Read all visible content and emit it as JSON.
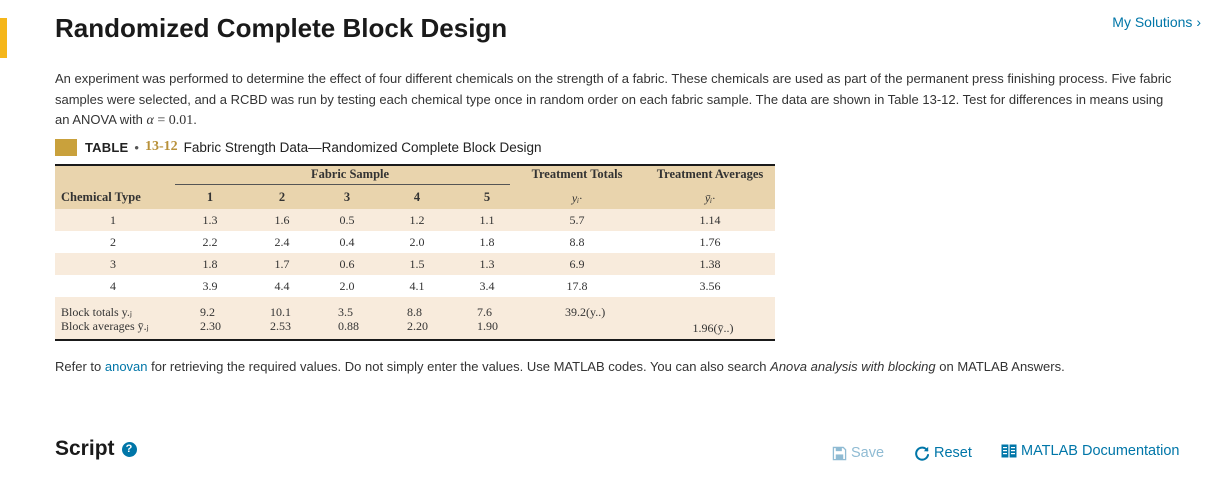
{
  "header": {
    "title": "Randomized Complete Block Design",
    "my_solutions_label": "My Solutions",
    "my_solutions_chevron": "›"
  },
  "description": {
    "text": "An experiment was performed to determine the effect of four different chemicals on the strength of a fabric. These chemicals are used as part of the permanent press finishing process. Five fabric samples were selected, and a RCBD was run by testing each chemical type once in random order on each fabric sample. The data are shown in Table 13-12. Test for differences in means using an ANOVA with ",
    "alpha_symbol": "α",
    "alpha_value": " = 0.01",
    "end": "."
  },
  "table": {
    "caption_label": "TABLE",
    "caption_dot": "•",
    "caption_number": "13-12",
    "caption_title": "Fabric Strength Data—Randomized Complete Block Design",
    "header": {
      "fabric_sample": "Fabric Sample",
      "treatment_totals": "Treatment Totals",
      "treatment_averages": "Treatment Averages",
      "chemical_type": "Chemical Type",
      "samples": [
        "1",
        "2",
        "3",
        "4",
        "5"
      ],
      "totals_symbol": "yᵢ·",
      "averages_symbol": "ȳᵢ·"
    },
    "rows": [
      {
        "type": "1",
        "values": [
          "1.3",
          "1.6",
          "0.5",
          "1.2",
          "1.1"
        ],
        "total": "5.7",
        "average": "1.14"
      },
      {
        "type": "2",
        "values": [
          "2.2",
          "2.4",
          "0.4",
          "2.0",
          "1.8"
        ],
        "total": "8.8",
        "average": "1.76"
      },
      {
        "type": "3",
        "values": [
          "1.8",
          "1.7",
          "0.6",
          "1.5",
          "1.3"
        ],
        "total": "6.9",
        "average": "1.38"
      },
      {
        "type": "4",
        "values": [
          "3.9",
          "4.4",
          "2.0",
          "4.1",
          "3.4"
        ],
        "total": "17.8",
        "average": "3.56"
      }
    ],
    "block_totals": {
      "label": "Block totals y.ⱼ",
      "values": [
        "9.2",
        "10.1",
        "3.5",
        "8.8",
        "7.6"
      ],
      "grand_total": "39.2(y..)"
    },
    "block_averages": {
      "label": "Block averages ȳ.ⱼ",
      "values": [
        "2.30",
        "2.53",
        "0.88",
        "2.20",
        "1.90"
      ],
      "grand_average": "1.96(ȳ..)"
    }
  },
  "refer": {
    "prefix": "Refer to ",
    "link": "anovan",
    "middle": " for retrieving the required values. Do not simply enter the values. Use MATLAB codes. You can also search ",
    "emphasis": "Anova analysis with blocking",
    "suffix": " on MATLAB Answers."
  },
  "script": {
    "title": "Script",
    "help_symbol": "?"
  },
  "toolbar": {
    "save_label": "Save",
    "reset_label": "Reset",
    "doc_label": "MATLAB Documentation"
  },
  "colors": {
    "accent": "#f5b61a",
    "link": "#0076a8",
    "table_header": "#e9d4ad",
    "table_stripe": "#f8ebdc",
    "caption_swatch": "#c9a13c"
  }
}
